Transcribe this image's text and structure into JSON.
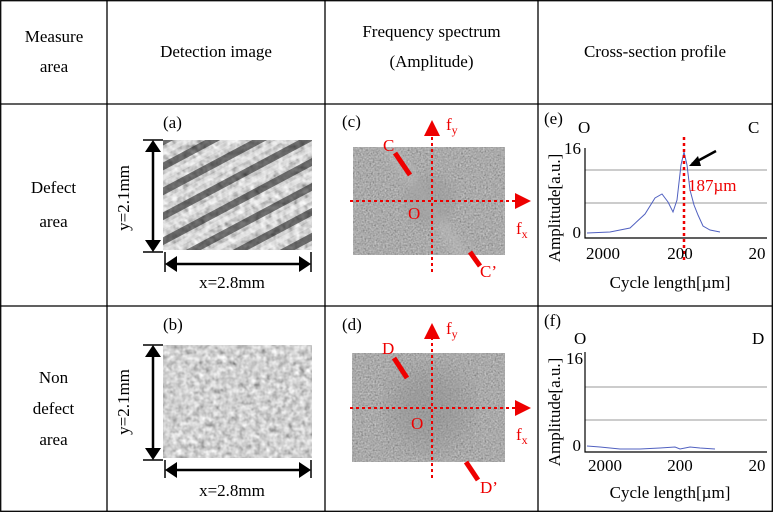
{
  "header": [
    "Measure area",
    "Detection image",
    "Frequency spectrum (Amplitude)",
    "Cross-section profile"
  ],
  "rows": [
    {
      "area": "Defect area",
      "detection": {
        "label": "(a)",
        "y_size": "y=2.1mm",
        "x_size": "x=2.8mm"
      },
      "spectrum": {
        "label": "(c)",
        "line_start": "C",
        "line_end": "C’",
        "origin": "O",
        "fy": "f",
        "fy_sub": "y",
        "fx": "f",
        "fx_sub": "x"
      },
      "profile": {
        "label": "(e)",
        "left_end": "O",
        "right_end": "C",
        "y_ticks": [
          "16",
          "0"
        ],
        "x_ticks": [
          "2000",
          "200",
          "20"
        ],
        "y_label": "Amplitude[a.u.]",
        "x_label": "Cycle length[µm]",
        "annotation": "187µm"
      }
    },
    {
      "area": "Non defect area",
      "detection": {
        "label": "(b)",
        "y_size": "y=2.1mm",
        "x_size": "x=2.8mm"
      },
      "spectrum": {
        "label": "(d)",
        "line_start": "D",
        "line_end": "D’",
        "origin": "O",
        "fy": "f",
        "fy_sub": "y",
        "fx": "f",
        "fx_sub": "x"
      },
      "profile": {
        "label": "(f)",
        "left_end": "O",
        "right_end": "D",
        "y_ticks": [
          "16",
          "0"
        ],
        "x_ticks": [
          "2000",
          "200",
          "20"
        ],
        "y_label": "Amplitude[a.u.]",
        "x_label": "Cycle length[µm]"
      }
    }
  ]
}
